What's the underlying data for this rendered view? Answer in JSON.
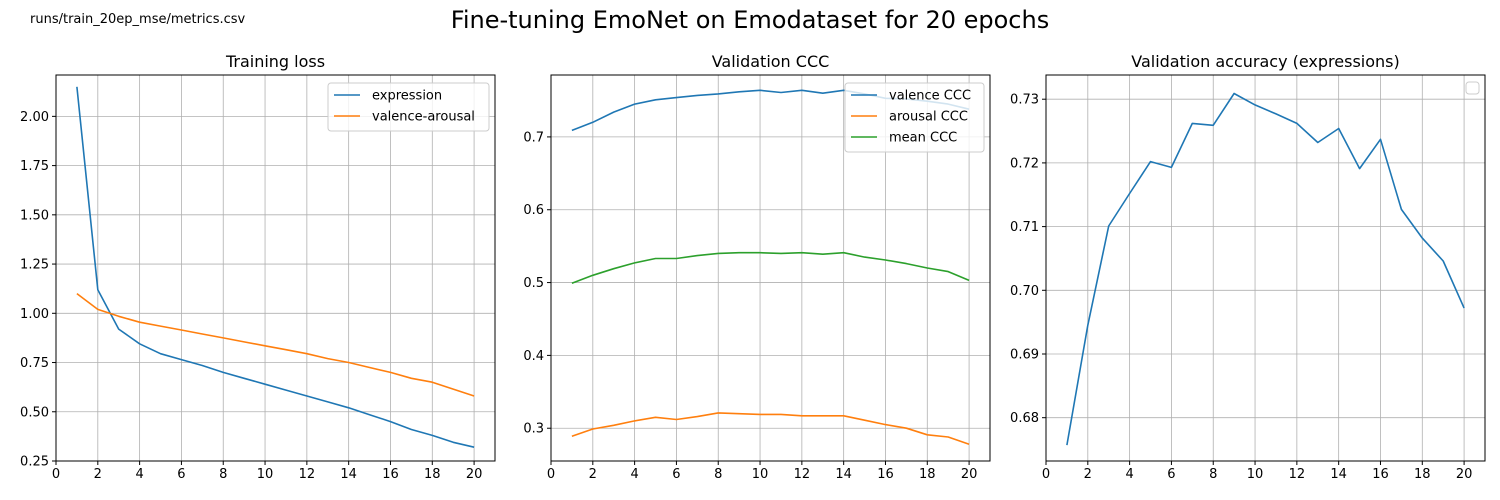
{
  "header": {
    "path": "runs/train_20ep_mse/metrics.csv",
    "title": "Fine-tuning EmoNet on Emodataset for 20 epochs"
  },
  "colors": {
    "blue": "#1f77b4",
    "orange": "#ff7f0e",
    "green": "#2ca02c",
    "grid": "#b0b0b0"
  },
  "chart_data": [
    {
      "type": "line",
      "title": "Training loss",
      "xlabel": "",
      "ylabel": "",
      "grid": true,
      "legend": "top-right",
      "xlim": [
        0,
        21
      ],
      "ylim": [
        0.25,
        2.21
      ],
      "xticks": [
        0,
        2,
        4,
        6,
        8,
        10,
        12,
        14,
        16,
        18,
        20
      ],
      "yticks": [
        0.25,
        0.5,
        0.75,
        1.0,
        1.25,
        1.5,
        1.75,
        2.0
      ],
      "ytick_labels": [
        "0.25",
        "0.50",
        "0.75",
        "1.00",
        "1.25",
        "1.50",
        "1.75",
        "2.00"
      ],
      "x": [
        1,
        2,
        3,
        4,
        5,
        6,
        7,
        8,
        9,
        10,
        11,
        12,
        13,
        14,
        15,
        16,
        17,
        18,
        19,
        20
      ],
      "series": [
        {
          "name": "expression",
          "color": "#1f77b4",
          "values": [
            2.15,
            1.12,
            0.92,
            0.845,
            0.795,
            0.765,
            0.735,
            0.7,
            0.67,
            0.64,
            0.61,
            0.58,
            0.55,
            0.52,
            0.485,
            0.45,
            0.41,
            0.38,
            0.345,
            0.32
          ]
        },
        {
          "name": "valence-arousal",
          "color": "#ff7f0e",
          "values": [
            1.1,
            1.02,
            0.985,
            0.955,
            0.935,
            0.915,
            0.895,
            0.875,
            0.855,
            0.835,
            0.815,
            0.795,
            0.77,
            0.75,
            0.725,
            0.7,
            0.67,
            0.65,
            0.615,
            0.58
          ]
        }
      ]
    },
    {
      "type": "line",
      "title": "Validation CCC",
      "xlabel": "",
      "ylabel": "",
      "grid": true,
      "legend": "top-right",
      "xlim": [
        0,
        21
      ],
      "ylim": [
        0.255,
        0.785
      ],
      "xticks": [
        0,
        2,
        4,
        6,
        8,
        10,
        12,
        14,
        16,
        18,
        20
      ],
      "yticks": [
        0.3,
        0.4,
        0.5,
        0.6,
        0.7
      ],
      "ytick_labels": [
        "0.3",
        "0.4",
        "0.5",
        "0.6",
        "0.7"
      ],
      "x": [
        1,
        2,
        3,
        4,
        5,
        6,
        7,
        8,
        9,
        10,
        11,
        12,
        13,
        14,
        15,
        16,
        17,
        18,
        19,
        20
      ],
      "series": [
        {
          "name": "valence CCC",
          "color": "#1f77b4",
          "values": [
            0.709,
            0.72,
            0.734,
            0.745,
            0.751,
            0.754,
            0.757,
            0.759,
            0.762,
            0.764,
            0.761,
            0.764,
            0.76,
            0.764,
            0.759,
            0.753,
            0.752,
            0.749,
            0.745,
            0.738
          ]
        },
        {
          "name": "arousal CCC",
          "color": "#ff7f0e",
          "values": [
            0.289,
            0.299,
            0.304,
            0.31,
            0.315,
            0.312,
            0.316,
            0.321,
            0.32,
            0.319,
            0.319,
            0.317,
            0.317,
            0.317,
            0.311,
            0.305,
            0.3,
            0.291,
            0.288,
            0.278
          ]
        },
        {
          "name": "mean CCC",
          "color": "#2ca02c",
          "values": [
            0.499,
            0.51,
            0.519,
            0.527,
            0.533,
            0.533,
            0.537,
            0.54,
            0.541,
            0.541,
            0.54,
            0.541,
            0.539,
            0.541,
            0.535,
            0.531,
            0.526,
            0.52,
            0.515,
            0.503
          ]
        }
      ]
    },
    {
      "type": "line",
      "title": "Validation accuracy (expressions)",
      "xlabel": "",
      "ylabel": "",
      "grid": true,
      "legend": "top-right (empty)",
      "xlim": [
        0,
        21
      ],
      "ylim": [
        0.6732,
        0.7338
      ],
      "xticks": [
        0,
        2,
        4,
        6,
        8,
        10,
        12,
        14,
        16,
        18,
        20
      ],
      "yticks": [
        0.68,
        0.69,
        0.7,
        0.71,
        0.72,
        0.73
      ],
      "ytick_labels": [
        "0.68",
        "0.69",
        "0.70",
        "0.71",
        "0.72",
        "0.73"
      ],
      "x": [
        1,
        2,
        3,
        4,
        5,
        6,
        7,
        8,
        9,
        10,
        11,
        12,
        13,
        14,
        15,
        16,
        17,
        18,
        19,
        20
      ],
      "series": [
        {
          "color": "#1f77b4",
          "values": [
            0.6757,
            0.6945,
            0.7101,
            0.7152,
            0.7202,
            0.7193,
            0.7262,
            0.7259,
            0.7309,
            0.7291,
            0.7277,
            0.7262,
            0.7232,
            0.7254,
            0.7191,
            0.7237,
            0.7127,
            0.7082,
            0.7046,
            0.6972
          ]
        }
      ]
    }
  ]
}
